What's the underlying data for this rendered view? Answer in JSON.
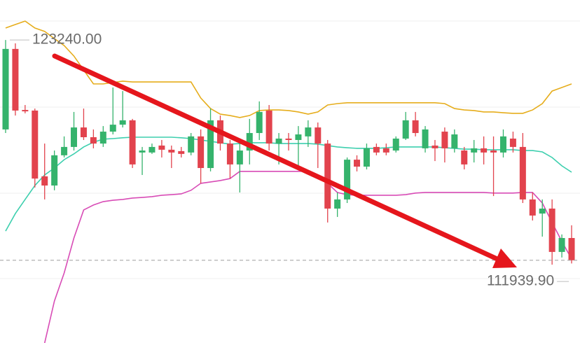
{
  "chart_data": {
    "type": "candlestick",
    "ylim": [
      108000,
      125250
    ],
    "up_color": "#35b36c",
    "down_color": "#e2434d",
    "candles": {
      "open": [
        118740,
        122790,
        119720,
        119690,
        116380,
        115920,
        117440,
        117860,
        118840,
        118350,
        118030,
        118630,
        118980,
        119200,
        117580,
        117580,
        117930,
        117720,
        117650,
        117580,
        118390,
        116800,
        119200,
        118030,
        116980,
        117680,
        118560,
        119690,
        118030,
        118280,
        118210,
        118390,
        118840,
        118030,
        114760,
        115220,
        117220,
        116870,
        117860,
        117790,
        117680,
        118280,
        119200,
        117790,
        117930,
        118630,
        117790,
        117680,
        117580,
        117790,
        117680,
        117580,
        118280,
        117860,
        115220,
        114510,
        114760,
        112580,
        113280
      ],
      "high": [
        123240,
        123070,
        119970,
        119790,
        118030,
        117680,
        118390,
        119620,
        119790,
        118740,
        118910,
        120850,
        120670,
        119270,
        117860,
        118030,
        118210,
        117930,
        117860,
        118560,
        118740,
        119790,
        119440,
        118210,
        118030,
        119270,
        120150,
        119970,
        118560,
        118560,
        118910,
        119200,
        119090,
        118210,
        115570,
        117330,
        117440,
        118030,
        118030,
        118030,
        118390,
        119620,
        119620,
        118910,
        118210,
        118840,
        118740,
        117860,
        118210,
        118390,
        118390,
        118740,
        118630,
        118560,
        115570,
        115220,
        115220,
        113460,
        113920
      ],
      "low": [
        118560,
        119440,
        119550,
        115820,
        115220,
        115680,
        117330,
        117680,
        118210,
        117790,
        117860,
        118490,
        118840,
        116800,
        116450,
        117510,
        117330,
        116800,
        117330,
        117440,
        116030,
        116630,
        117680,
        116270,
        115570,
        116980,
        118210,
        117680,
        116980,
        117680,
        116800,
        117860,
        116800,
        114060,
        114340,
        115040,
        116630,
        116730,
        117440,
        117440,
        117580,
        118210,
        118390,
        117580,
        117150,
        117080,
        117580,
        116730,
        117080,
        116980,
        115390,
        117330,
        117580,
        115040,
        114160,
        113350,
        111939.9,
        112300,
        112000
      ],
      "close": [
        122790,
        119690,
        119650,
        116270,
        115920,
        117440,
        117860,
        118840,
        118350,
        118030,
        118630,
        118980,
        119200,
        116980,
        117680,
        117860,
        117720,
        117580,
        117510,
        118390,
        116800,
        119200,
        118030,
        116980,
        117680,
        118560,
        119620,
        118030,
        118280,
        118210,
        118490,
        118840,
        118030,
        114760,
        115220,
        117220,
        116870,
        117790,
        117580,
        117580,
        118280,
        119200,
        118560,
        118740,
        117790,
        117790,
        118490,
        116980,
        117790,
        117580,
        117580,
        118390,
        117860,
        115220,
        114410,
        114760,
        112580,
        113280,
        112160
      ]
    },
    "series": [
      {
        "color": "#e6ad1c",
        "values": [
          123840,
          124020,
          124190,
          123840,
          123670,
          123310,
          122960,
          122430,
          121730,
          121030,
          121030,
          121100,
          121170,
          121130,
          121130,
          121130,
          121130,
          121130,
          121130,
          121130,
          120320,
          119790,
          119510,
          119440,
          119340,
          119440,
          119690,
          119720,
          119720,
          119690,
          119620,
          119510,
          119620,
          119970,
          120040,
          120080,
          120080,
          120080,
          120080,
          120080,
          120080,
          120080,
          120080,
          120080,
          120080,
          120040,
          119790,
          119720,
          119690,
          119620,
          119620,
          119580,
          119550,
          119550,
          119720,
          120040,
          120670,
          120850,
          121030
        ]
      },
      {
        "color": "#3dcfae",
        "values": [
          113630,
          114510,
          115220,
          115920,
          116450,
          116800,
          117220,
          117510,
          117860,
          118100,
          118250,
          118280,
          118320,
          118350,
          118350,
          118350,
          118350,
          118350,
          118320,
          118280,
          118210,
          118140,
          118070,
          118000,
          118030,
          118070,
          118070,
          118070,
          118030,
          118030,
          118030,
          118030,
          118000,
          117930,
          117860,
          117820,
          117790,
          117790,
          117790,
          117820,
          117860,
          117860,
          117860,
          117860,
          117860,
          117820,
          117790,
          117750,
          117750,
          117720,
          117720,
          117720,
          117720,
          117680,
          117680,
          117610,
          117330,
          116910,
          116590
        ]
      },
      {
        "color": "#d84cb6",
        "values": [
          null,
          null,
          null,
          null,
          108000,
          110110,
          111520,
          113280,
          114690,
          114940,
          115110,
          115180,
          115220,
          115290,
          115320,
          115360,
          115430,
          115460,
          115500,
          115680,
          116030,
          116100,
          116170,
          116270,
          116630,
          116630,
          116630,
          116630,
          116630,
          116630,
          116630,
          116630,
          116450,
          116030,
          115570,
          115460,
          115430,
          115430,
          115430,
          115430,
          115430,
          115460,
          115540,
          115570,
          115570,
          115570,
          115570,
          115570,
          115570,
          115570,
          115540,
          115540,
          115540,
          115570,
          115570,
          115040,
          114060,
          113110,
          112230
        ]
      }
    ],
    "extreme_labels": {
      "high": "123240.00",
      "low": "111939.90"
    }
  }
}
